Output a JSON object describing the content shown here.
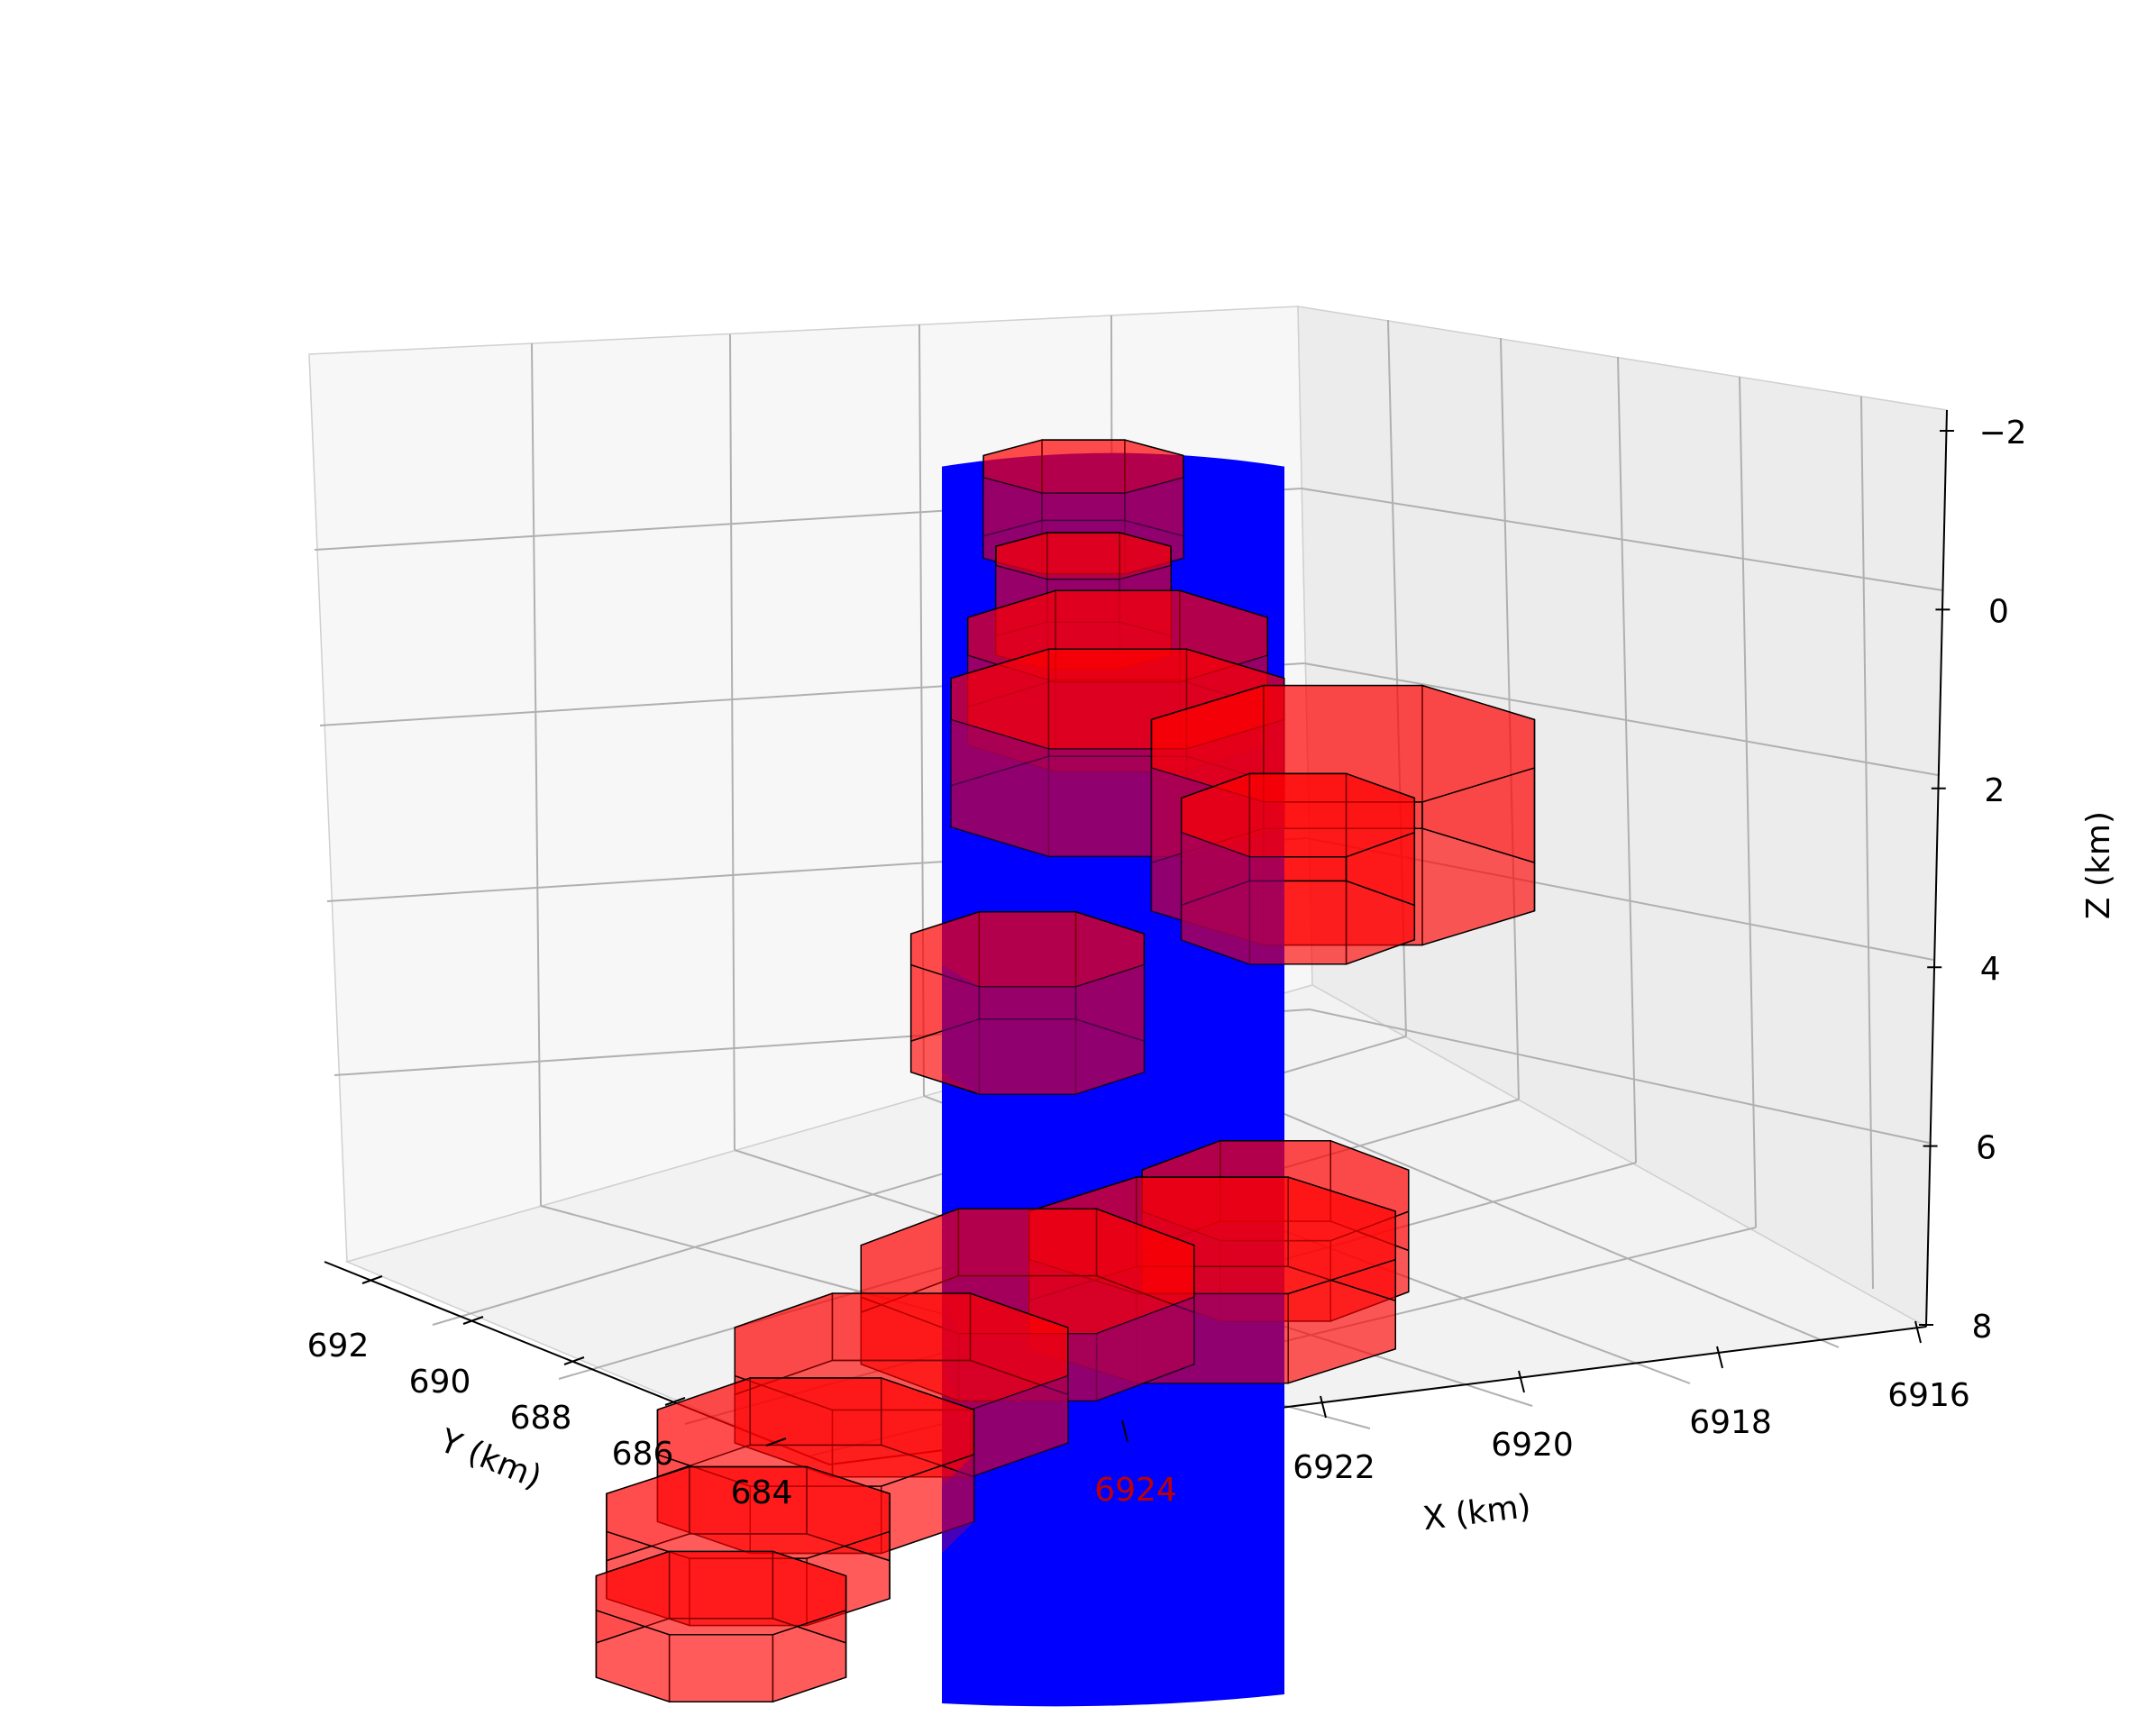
{
  "chart_data": {
    "type": "3d-volume",
    "xlabel": "X (km)",
    "ylabel": "Y (km)",
    "zlabel": "Z (km)",
    "xlim": [
      6915.5,
      6924.6
    ],
    "ylim": [
      682.6,
      693.0
    ],
    "zlim": [
      8.0,
      -2.0
    ],
    "z_inverted": true,
    "x_ticks": [
      "6916",
      "6918",
      "6920",
      "6922",
      "6924"
    ],
    "y_ticks": [
      "692",
      "690",
      "688",
      "686",
      "684"
    ],
    "z_ticks": [
      "−2",
      "0",
      "2",
      "4",
      "6",
      "8"
    ],
    "grid": true,
    "colors": {
      "cylinder": "#0000ff",
      "volume_face": "#ff0000",
      "volume_overlap": "#800080",
      "edge": "#000000",
      "pane_left": "#f7f7f7",
      "pane_right": "#ececec",
      "pane_floor": "#f4f4f4",
      "gridline": "#b0b0b0"
    },
    "series": [
      {
        "name": "",
        "kind": "vertical-cylinder",
        "center_xy": [
          6920.8,
          686.3
        ],
        "radius_km": 1.2,
        "z_range": [
          -1.6,
          8.0
        ],
        "color": "#0000ff"
      },
      {
        "name": "",
        "kind": "prism-stack",
        "color": "#ff0000",
        "alpha": 0.5,
        "layers": [
          {
            "z_top": -1.6,
            "z_bottom": -0.7
          },
          {
            "z_top": -0.6,
            "z_bottom": 0.4
          },
          {
            "z_top": 0.3,
            "z_bottom": 1.3
          },
          {
            "z_top": 1.0,
            "z_bottom": 2.2
          },
          {
            "z_top": 1.5,
            "z_bottom": 3.1
          },
          {
            "z_top": 2.3,
            "z_bottom": 3.5
          },
          {
            "z_top": 3.8,
            "z_bottom": 5.0
          },
          {
            "z_top": 6.5,
            "z_bottom": 7.4
          },
          {
            "z_top": 7.0,
            "z_bottom": 8.0
          },
          {
            "z_top": 7.5,
            "z_bottom": 8.0
          },
          {
            "z_top": 7.8,
            "z_bottom": 8.0
          },
          {
            "z_top": 8.0,
            "z_bottom": 8.0
          },
          {
            "z_top": 8.0,
            "z_bottom": 8.0
          },
          {
            "z_top": 8.0,
            "z_bottom": 8.0
          }
        ]
      }
    ]
  }
}
